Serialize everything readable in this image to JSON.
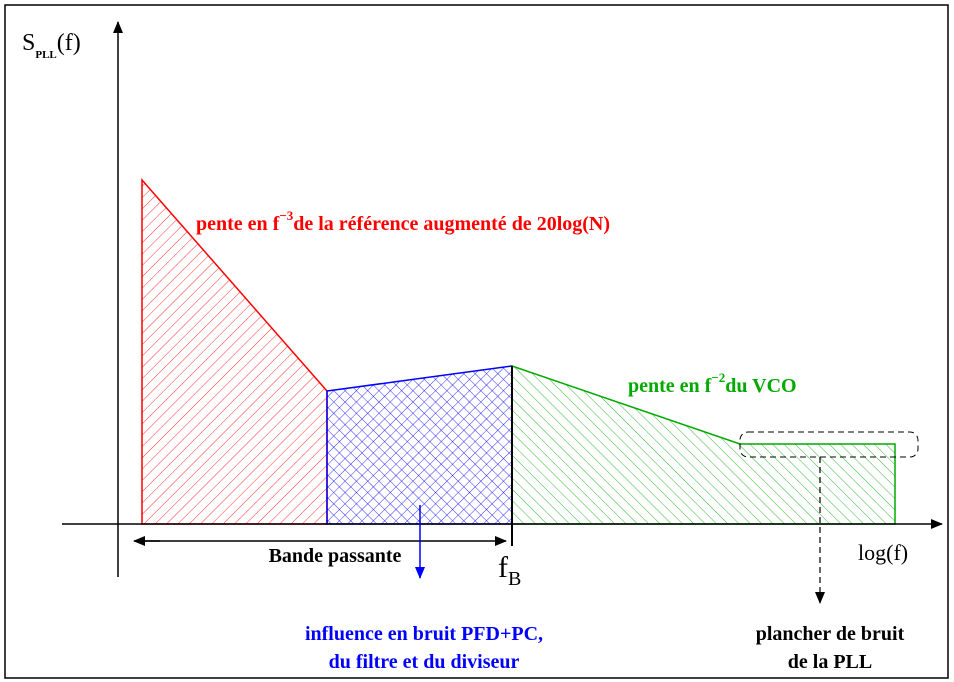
{
  "axes": {
    "y_label": {
      "main": "S",
      "sub": "PLL",
      "suffix": "(f)"
    },
    "x_label": "log(f)"
  },
  "annotations": {
    "reference": {
      "pre": "pente en f",
      "sup": "−3",
      "post": "de la référence augmenté de 20log(N)"
    },
    "vco": {
      "pre": "pente en f",
      "sup": "−2",
      "post": "du VCO"
    },
    "bandwidth": "Bande passante",
    "fb": {
      "main": "f",
      "sub": "B"
    },
    "influence": [
      "influence en bruit PFD+PC,",
      "du filtre et du diviseur"
    ],
    "floor": [
      "plancher de bruit",
      "de la PLL"
    ]
  }
}
